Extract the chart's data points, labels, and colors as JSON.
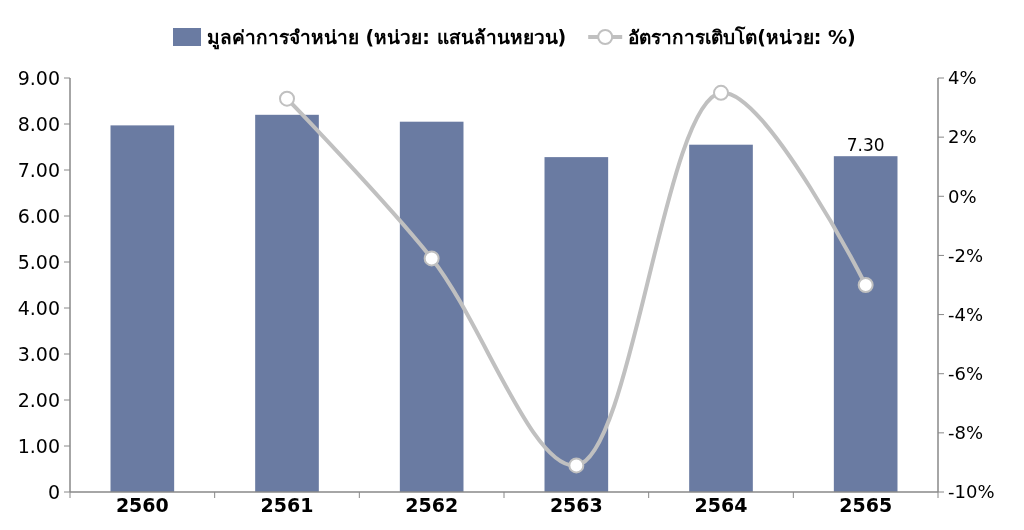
{
  "chart_data": {
    "type": "bar",
    "categories": [
      "2560",
      "2561",
      "2562",
      "2563",
      "2564",
      "2565"
    ],
    "series": [
      {
        "name": "มูลค่าการจำหน่าย (หน่วย: แสนล้านหยวน)",
        "color": "#6a7ba2",
        "values": [
          7.97,
          8.2,
          8.05,
          7.28,
          7.55,
          7.3
        ],
        "value_labels": [
          null,
          null,
          null,
          null,
          null,
          "7.30"
        ]
      },
      {
        "name": "อัตราการเติบโต(หน่วย: %)",
        "type": "line",
        "axis": "y2",
        "color": "#c0c0c0",
        "values": [
          null,
          3.3,
          -2.1,
          -9.1,
          3.5,
          -3.0
        ],
        "marker": "circle"
      }
    ],
    "ylim": [
      0,
      9
    ],
    "yticks": [
      {
        "value": 0,
        "label": "0"
      },
      {
        "value": 1,
        "label": "1.00"
      },
      {
        "value": 2,
        "label": "2.00"
      },
      {
        "value": 3,
        "label": "3.00"
      },
      {
        "value": 4,
        "label": "4.00"
      },
      {
        "value": 5,
        "label": "5.00"
      },
      {
        "value": 6,
        "label": "6.00"
      },
      {
        "value": 7,
        "label": "7.00"
      },
      {
        "value": 8,
        "label": "8.00"
      },
      {
        "value": 9,
        "label": "9.00"
      }
    ],
    "y2lim": [
      -10,
      4
    ],
    "y2ticks": [
      {
        "value": -10,
        "label": "-10%"
      },
      {
        "value": -8,
        "label": "-8%"
      },
      {
        "value": -6,
        "label": "-6%"
      },
      {
        "value": -4,
        "label": "-4%"
      },
      {
        "value": -2,
        "label": "-2%"
      },
      {
        "value": 0,
        "label": "0%"
      },
      {
        "value": 2,
        "label": "2%"
      },
      {
        "value": 4,
        "label": "4%"
      }
    ],
    "legend": "top",
    "grid": false
  }
}
